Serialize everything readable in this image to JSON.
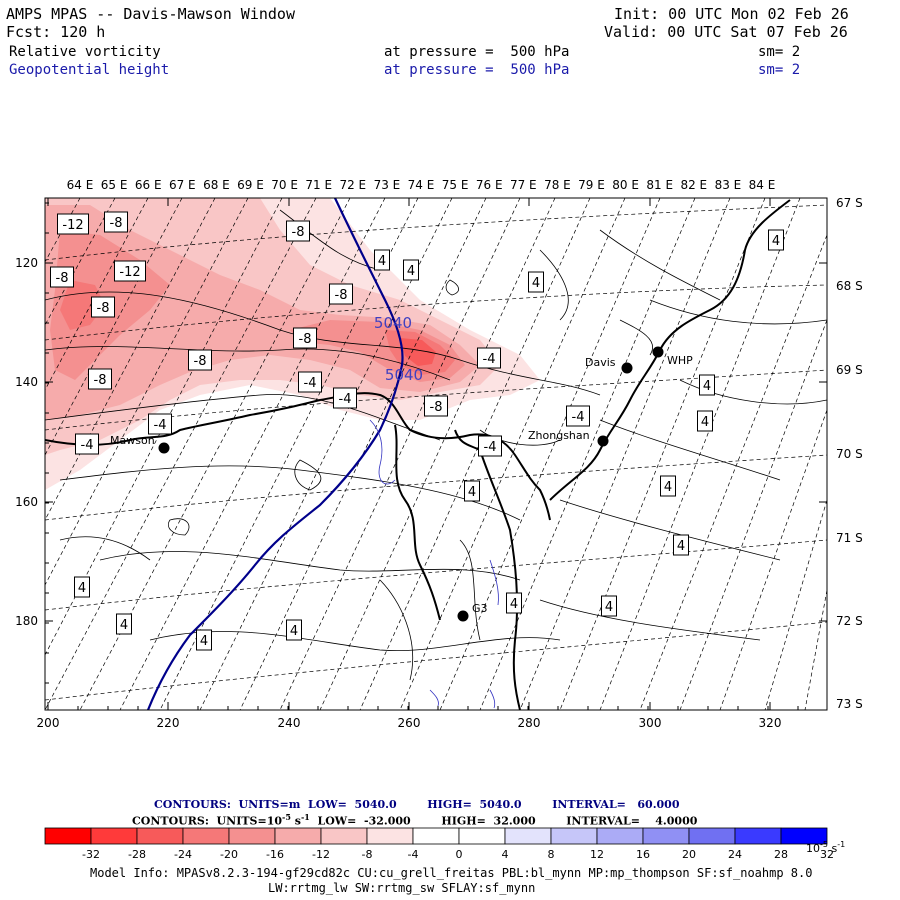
{
  "header": {
    "title": "AMPS MPAS -- Davis-Mawson Window",
    "init": "Init: 00 UTC Mon 02 Feb 26",
    "fcst": "Fcst: 120 h",
    "valid": "Valid: 00 UTC Sat 07 Feb 26",
    "fields": [
      {
        "name": "Relative vorticity",
        "pressure": "at pressure =  500 hPa",
        "sm": "sm= 2"
      },
      {
        "name": "Geopotential height",
        "pressure": "at pressure =  500 hPa",
        "sm": "sm= 2"
      }
    ]
  },
  "map": {
    "top_lon_labels": [
      "64 E",
      "65 E",
      "66 E",
      "67 E",
      "68 E",
      "69 E",
      "70 E",
      "71 E",
      "72 E",
      "73 E",
      "74 E",
      "75 E",
      "76 E",
      "77 E",
      "78 E",
      "79 E",
      "80 E",
      "81 E",
      "82 E",
      "83 E",
      "84 E"
    ],
    "right_lat_labels": [
      "67 S",
      "68 S",
      "69 S",
      "70 S",
      "71 S",
      "72 S",
      "73 S"
    ],
    "x_ticks": [
      "200",
      "220",
      "240",
      "260",
      "280",
      "300",
      "320"
    ],
    "y_ticks": [
      "120",
      "140",
      "160",
      "180"
    ],
    "stations": [
      {
        "name": "Davis"
      },
      {
        "name": "WHP"
      },
      {
        "name": "Mawson"
      },
      {
        "name": "Zhongshan"
      },
      {
        "name": "G3"
      }
    ],
    "vort_labels": [
      "-12",
      "-8",
      "-8",
      "-12",
      "-8",
      "-8",
      "-8",
      "-8",
      "-8",
      "-8",
      "-4",
      "-4",
      "-4",
      "-4",
      "-8",
      "-4",
      "-4",
      "-4",
      "4",
      "4",
      "4",
      "4",
      "4",
      "4",
      "4",
      "4",
      "4",
      "4",
      "4",
      "4",
      "4",
      "4",
      "4"
    ],
    "height_labels": [
      "5040",
      "5040"
    ]
  },
  "contour_info": {
    "line1": "CONTOURS:  UNITS=m  LOW=  5040.0        HIGH=  5040.0        INTERVAL=   60.000",
    "line2_a": "CONTOURS:  UNITS=10",
    "line2_exp": "-5",
    "line2_b": " s",
    "line2_exp2": "-1",
    "line2_c": "  LOW=  -32.000        HIGH=  32.000        INTERVAL=    4.0000"
  },
  "colorbar": {
    "labels": [
      "-32",
      "-28",
      "-24",
      "-20",
      "-16",
      "-12",
      "-8",
      "-4",
      "0",
      "4",
      "8",
      "12",
      "16",
      "20",
      "24",
      "28",
      "32"
    ],
    "colors": [
      "#ff0000",
      "#ff3a3a",
      "#f75a5a",
      "#f57878",
      "#f49090",
      "#f6abab",
      "#f9c6c6",
      "#fce3e3",
      "#ffffff",
      "#ffffff",
      "#e3e3fc",
      "#c6c6f9",
      "#ababf6",
      "#9090f4",
      "#7070f2",
      "#3a3aff",
      "#0000ff"
    ],
    "unit": "10",
    "unit_exp": "-5",
    "unit_b": " s",
    "unit_exp2": "-1"
  },
  "model_info": {
    "line1": "Model Info: MPASv8.2.3-194-gf29cd82c CU:cu_grell_freitas PBL:bl_mynn MP:mp_thompson SF:sf_noahmp 8.0",
    "line2": "LW:rrtmg_lw SW:rrtmg_sw SFLAY:sf_mynn"
  }
}
